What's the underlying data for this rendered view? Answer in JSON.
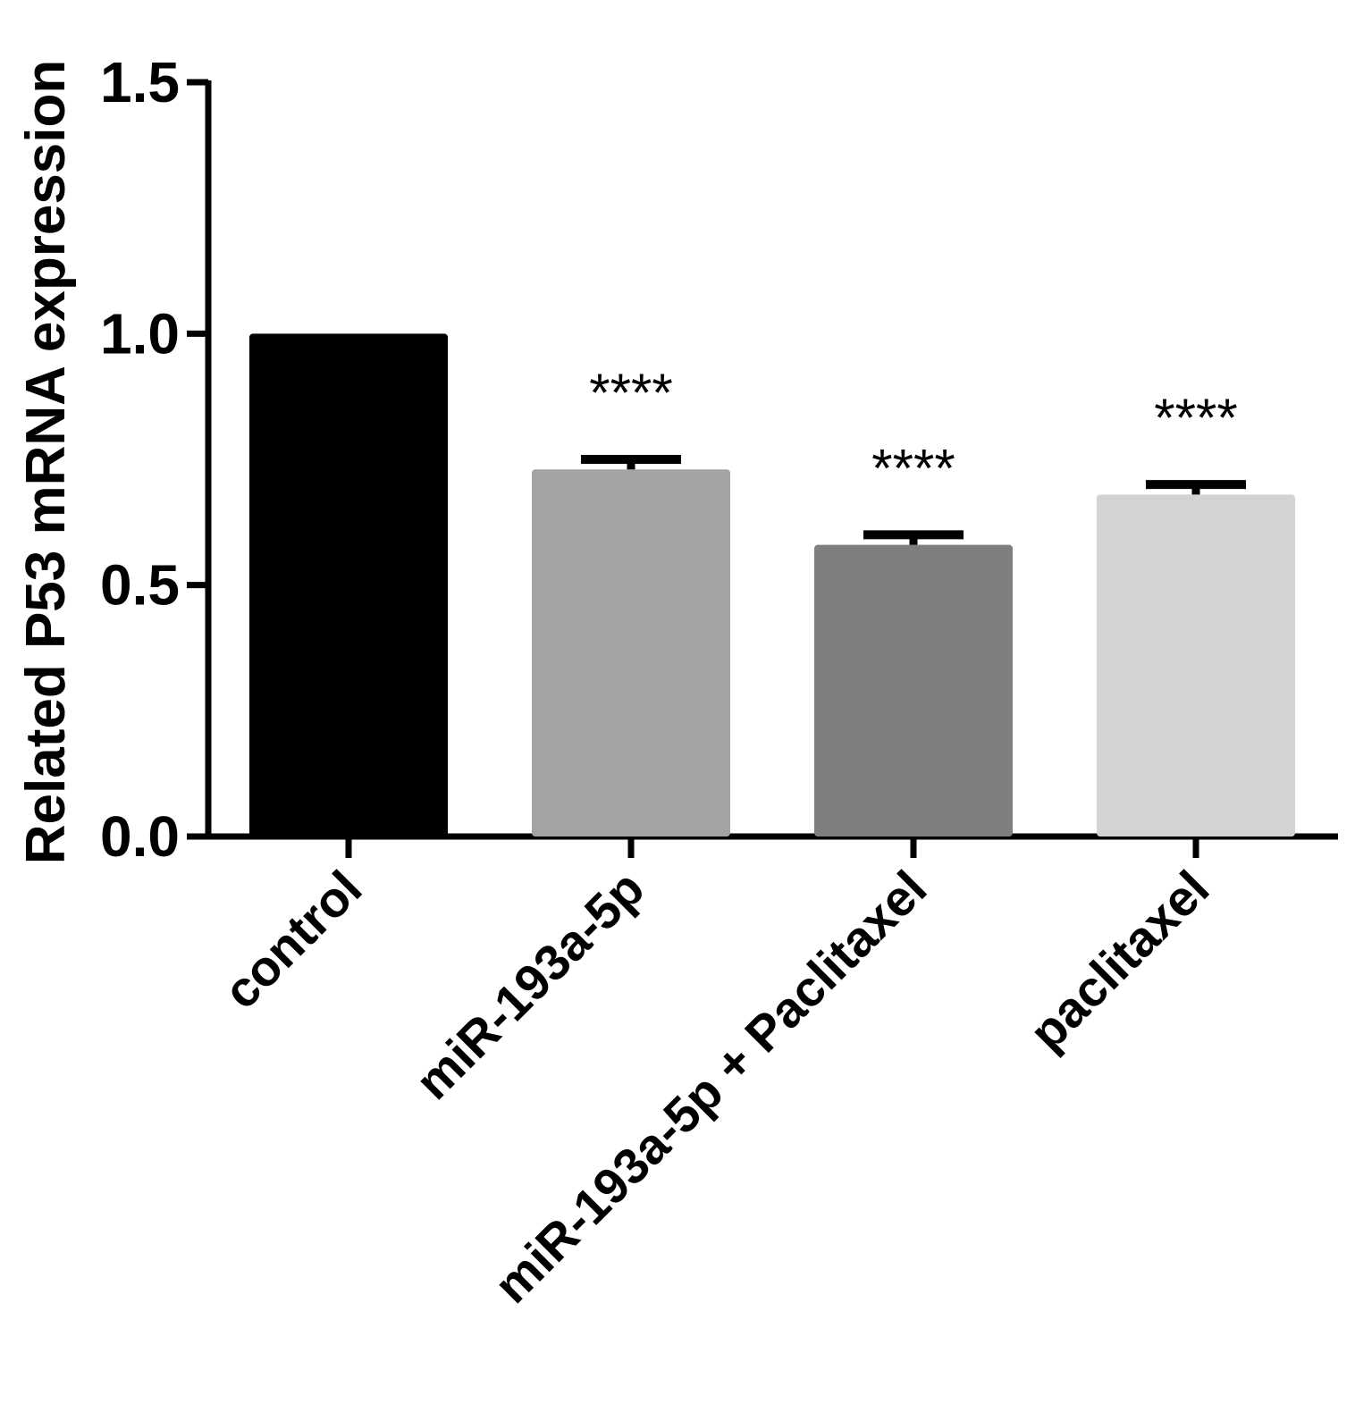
{
  "chart_data": {
    "type": "bar",
    "title": "",
    "ylabel": "Related P53 mRNA expression",
    "xlabel": "",
    "ylim": [
      0,
      1.5
    ],
    "yticks": [
      0.0,
      0.5,
      1.0,
      1.5
    ],
    "ytick_labels": [
      "0.0",
      "0.5",
      "1.0",
      "1.5"
    ],
    "categories": [
      "control",
      "miR-193a-5p",
      "miR-193a-5p + Paclitaxel",
      "paclitaxel"
    ],
    "values": [
      1.0,
      0.73,
      0.58,
      0.68
    ],
    "errors": [
      0,
      0.02,
      0.02,
      0.02
    ],
    "colors": [
      "#000000",
      "#a3a3a6",
      "#7f7f7f",
      "#d3d3d3"
    ],
    "annotations": [
      "",
      "****",
      "****",
      "****"
    ],
    "grid": false,
    "legend": "none"
  }
}
